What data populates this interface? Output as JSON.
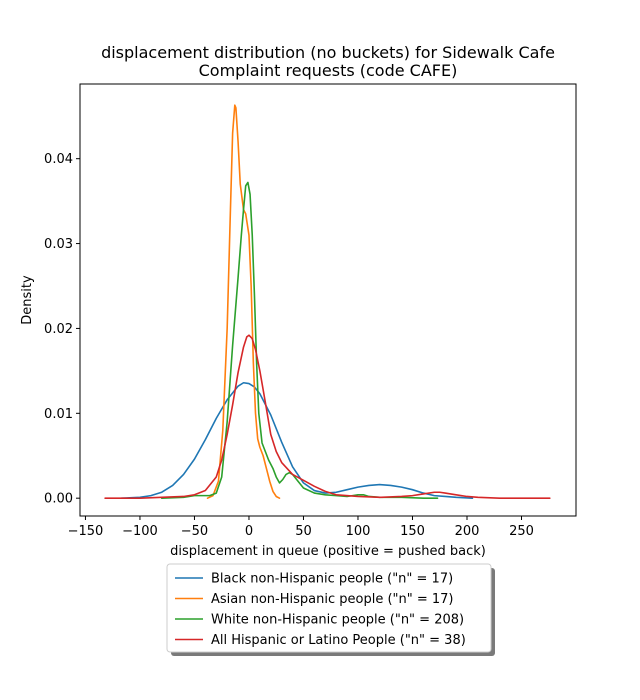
{
  "chart_data": {
    "type": "line",
    "title_lines": [
      "displacement distribution (no buckets)  for Sidewalk Cafe",
      "Complaint requests (code CAFE)"
    ],
    "xlabel": "displacement in queue (positive = pushed back)",
    "ylabel": "Density",
    "xlim": [
      -155,
      300
    ],
    "ylim": [
      -0.0021,
      0.0488
    ],
    "xticks": [
      -150,
      -100,
      -50,
      0,
      50,
      100,
      150,
      200,
      250
    ],
    "yticks": [
      0.0,
      0.01,
      0.02,
      0.03,
      0.04
    ],
    "ytick_labels": [
      "0.00",
      "0.01",
      "0.02",
      "0.03",
      "0.04"
    ],
    "legend_position": "below",
    "series": [
      {
        "name": "Black non-Hispanic people (\"n\" = 17)",
        "color": "#1f77b4",
        "points": [
          [
            -117,
            0.0
          ],
          [
            -100,
            0.0001
          ],
          [
            -90,
            0.0003
          ],
          [
            -80,
            0.0007
          ],
          [
            -70,
            0.0015
          ],
          [
            -60,
            0.0028
          ],
          [
            -50,
            0.0046
          ],
          [
            -40,
            0.0069
          ],
          [
            -30,
            0.0094
          ],
          [
            -20,
            0.0116
          ],
          [
            -10,
            0.0132
          ],
          [
            -5,
            0.0136
          ],
          [
            0,
            0.0135
          ],
          [
            5,
            0.0131
          ],
          [
            10,
            0.0123
          ],
          [
            20,
            0.0098
          ],
          [
            30,
            0.0066
          ],
          [
            40,
            0.0037
          ],
          [
            50,
            0.0018
          ],
          [
            60,
            0.0009
          ],
          [
            70,
            0.0006
          ],
          [
            80,
            0.0007
          ],
          [
            90,
            0.001
          ],
          [
            100,
            0.0013
          ],
          [
            110,
            0.0015
          ],
          [
            120,
            0.0016
          ],
          [
            130,
            0.0015
          ],
          [
            140,
            0.0013
          ],
          [
            150,
            0.001
          ],
          [
            160,
            0.0006
          ],
          [
            170,
            0.0003
          ],
          [
            180,
            0.0002
          ],
          [
            190,
            0.0001
          ],
          [
            205,
            0.0
          ]
        ]
      },
      {
        "name": "Asian non-Hispanic people (\"n\" = 17)",
        "color": "#ff7f0e",
        "points": [
          [
            -38,
            0.0
          ],
          [
            -33,
            0.0003
          ],
          [
            -28,
            0.002
          ],
          [
            -24,
            0.008
          ],
          [
            -20,
            0.02
          ],
          [
            -17,
            0.034
          ],
          [
            -15,
            0.043
          ],
          [
            -13,
            0.0463
          ],
          [
            -12,
            0.046
          ],
          [
            -10,
            0.042
          ],
          [
            -8,
            0.037
          ],
          [
            -5,
            0.034
          ],
          [
            -3,
            0.0335
          ],
          [
            0,
            0.031
          ],
          [
            2,
            0.025
          ],
          [
            4,
            0.016
          ],
          [
            6,
            0.01
          ],
          [
            8,
            0.007
          ],
          [
            10,
            0.006
          ],
          [
            13,
            0.005
          ],
          [
            16,
            0.0035
          ],
          [
            19,
            0.002
          ],
          [
            22,
            0.0008
          ],
          [
            25,
            0.0002
          ],
          [
            28,
            0.0
          ]
        ]
      },
      {
        "name": "White non-Hispanic people (\"n\" = 208)",
        "color": "#2ca02c",
        "points": [
          [
            -80,
            0.0
          ],
          [
            -60,
            0.0001
          ],
          [
            -50,
            0.0003
          ],
          [
            -42,
            0.0003
          ],
          [
            -36,
            0.0003
          ],
          [
            -30,
            0.0006
          ],
          [
            -25,
            0.0025
          ],
          [
            -20,
            0.009
          ],
          [
            -15,
            0.018
          ],
          [
            -10,
            0.026
          ],
          [
            -7,
            0.031
          ],
          [
            -5,
            0.034
          ],
          [
            -3,
            0.0368
          ],
          [
            -1,
            0.0372
          ],
          [
            1,
            0.0358
          ],
          [
            3,
            0.031
          ],
          [
            5,
            0.024
          ],
          [
            7,
            0.016
          ],
          [
            9,
            0.01
          ],
          [
            12,
            0.0065
          ],
          [
            15,
            0.0055
          ],
          [
            18,
            0.0045
          ],
          [
            22,
            0.0035
          ],
          [
            25,
            0.0025
          ],
          [
            28,
            0.0018
          ],
          [
            31,
            0.0022
          ],
          [
            34,
            0.0028
          ],
          [
            37,
            0.003
          ],
          [
            40,
            0.0028
          ],
          [
            45,
            0.002
          ],
          [
            50,
            0.0012
          ],
          [
            60,
            0.0006
          ],
          [
            70,
            0.0004
          ],
          [
            80,
            0.0003
          ],
          [
            90,
            0.0002
          ],
          [
            95,
            0.0003
          ],
          [
            100,
            0.0004
          ],
          [
            105,
            0.0004
          ],
          [
            110,
            0.0002
          ],
          [
            120,
            0.0001
          ],
          [
            140,
            0.0001
          ],
          [
            160,
            0.0
          ],
          [
            173,
            0.0
          ]
        ]
      },
      {
        "name": "All Hispanic or Latino People (\"n\" = 38)",
        "color": "#d62728",
        "points": [
          [
            -132,
            0.0
          ],
          [
            -100,
            0.0
          ],
          [
            -80,
            0.0001
          ],
          [
            -60,
            0.0002
          ],
          [
            -50,
            0.0004
          ],
          [
            -40,
            0.0009
          ],
          [
            -30,
            0.0025
          ],
          [
            -25,
            0.0045
          ],
          [
            -20,
            0.0075
          ],
          [
            -15,
            0.011
          ],
          [
            -10,
            0.0148
          ],
          [
            -5,
            0.0178
          ],
          [
            -2,
            0.019
          ],
          [
            0,
            0.0192
          ],
          [
            3,
            0.0188
          ],
          [
            6,
            0.0175
          ],
          [
            10,
            0.015
          ],
          [
            15,
            0.0113
          ],
          [
            20,
            0.0075
          ],
          [
            25,
            0.0055
          ],
          [
            30,
            0.0042
          ],
          [
            40,
            0.0028
          ],
          [
            50,
            0.0021
          ],
          [
            60,
            0.0014
          ],
          [
            70,
            0.0008
          ],
          [
            80,
            0.0004
          ],
          [
            100,
            0.0002
          ],
          [
            120,
            0.0001
          ],
          [
            140,
            0.0002
          ],
          [
            150,
            0.0003
          ],
          [
            160,
            0.0005
          ],
          [
            170,
            0.0007
          ],
          [
            175,
            0.0007
          ],
          [
            180,
            0.0006
          ],
          [
            190,
            0.0004
          ],
          [
            200,
            0.0002
          ],
          [
            210,
            0.0001
          ],
          [
            230,
            0.0
          ],
          [
            276,
            0.0
          ]
        ]
      }
    ]
  }
}
